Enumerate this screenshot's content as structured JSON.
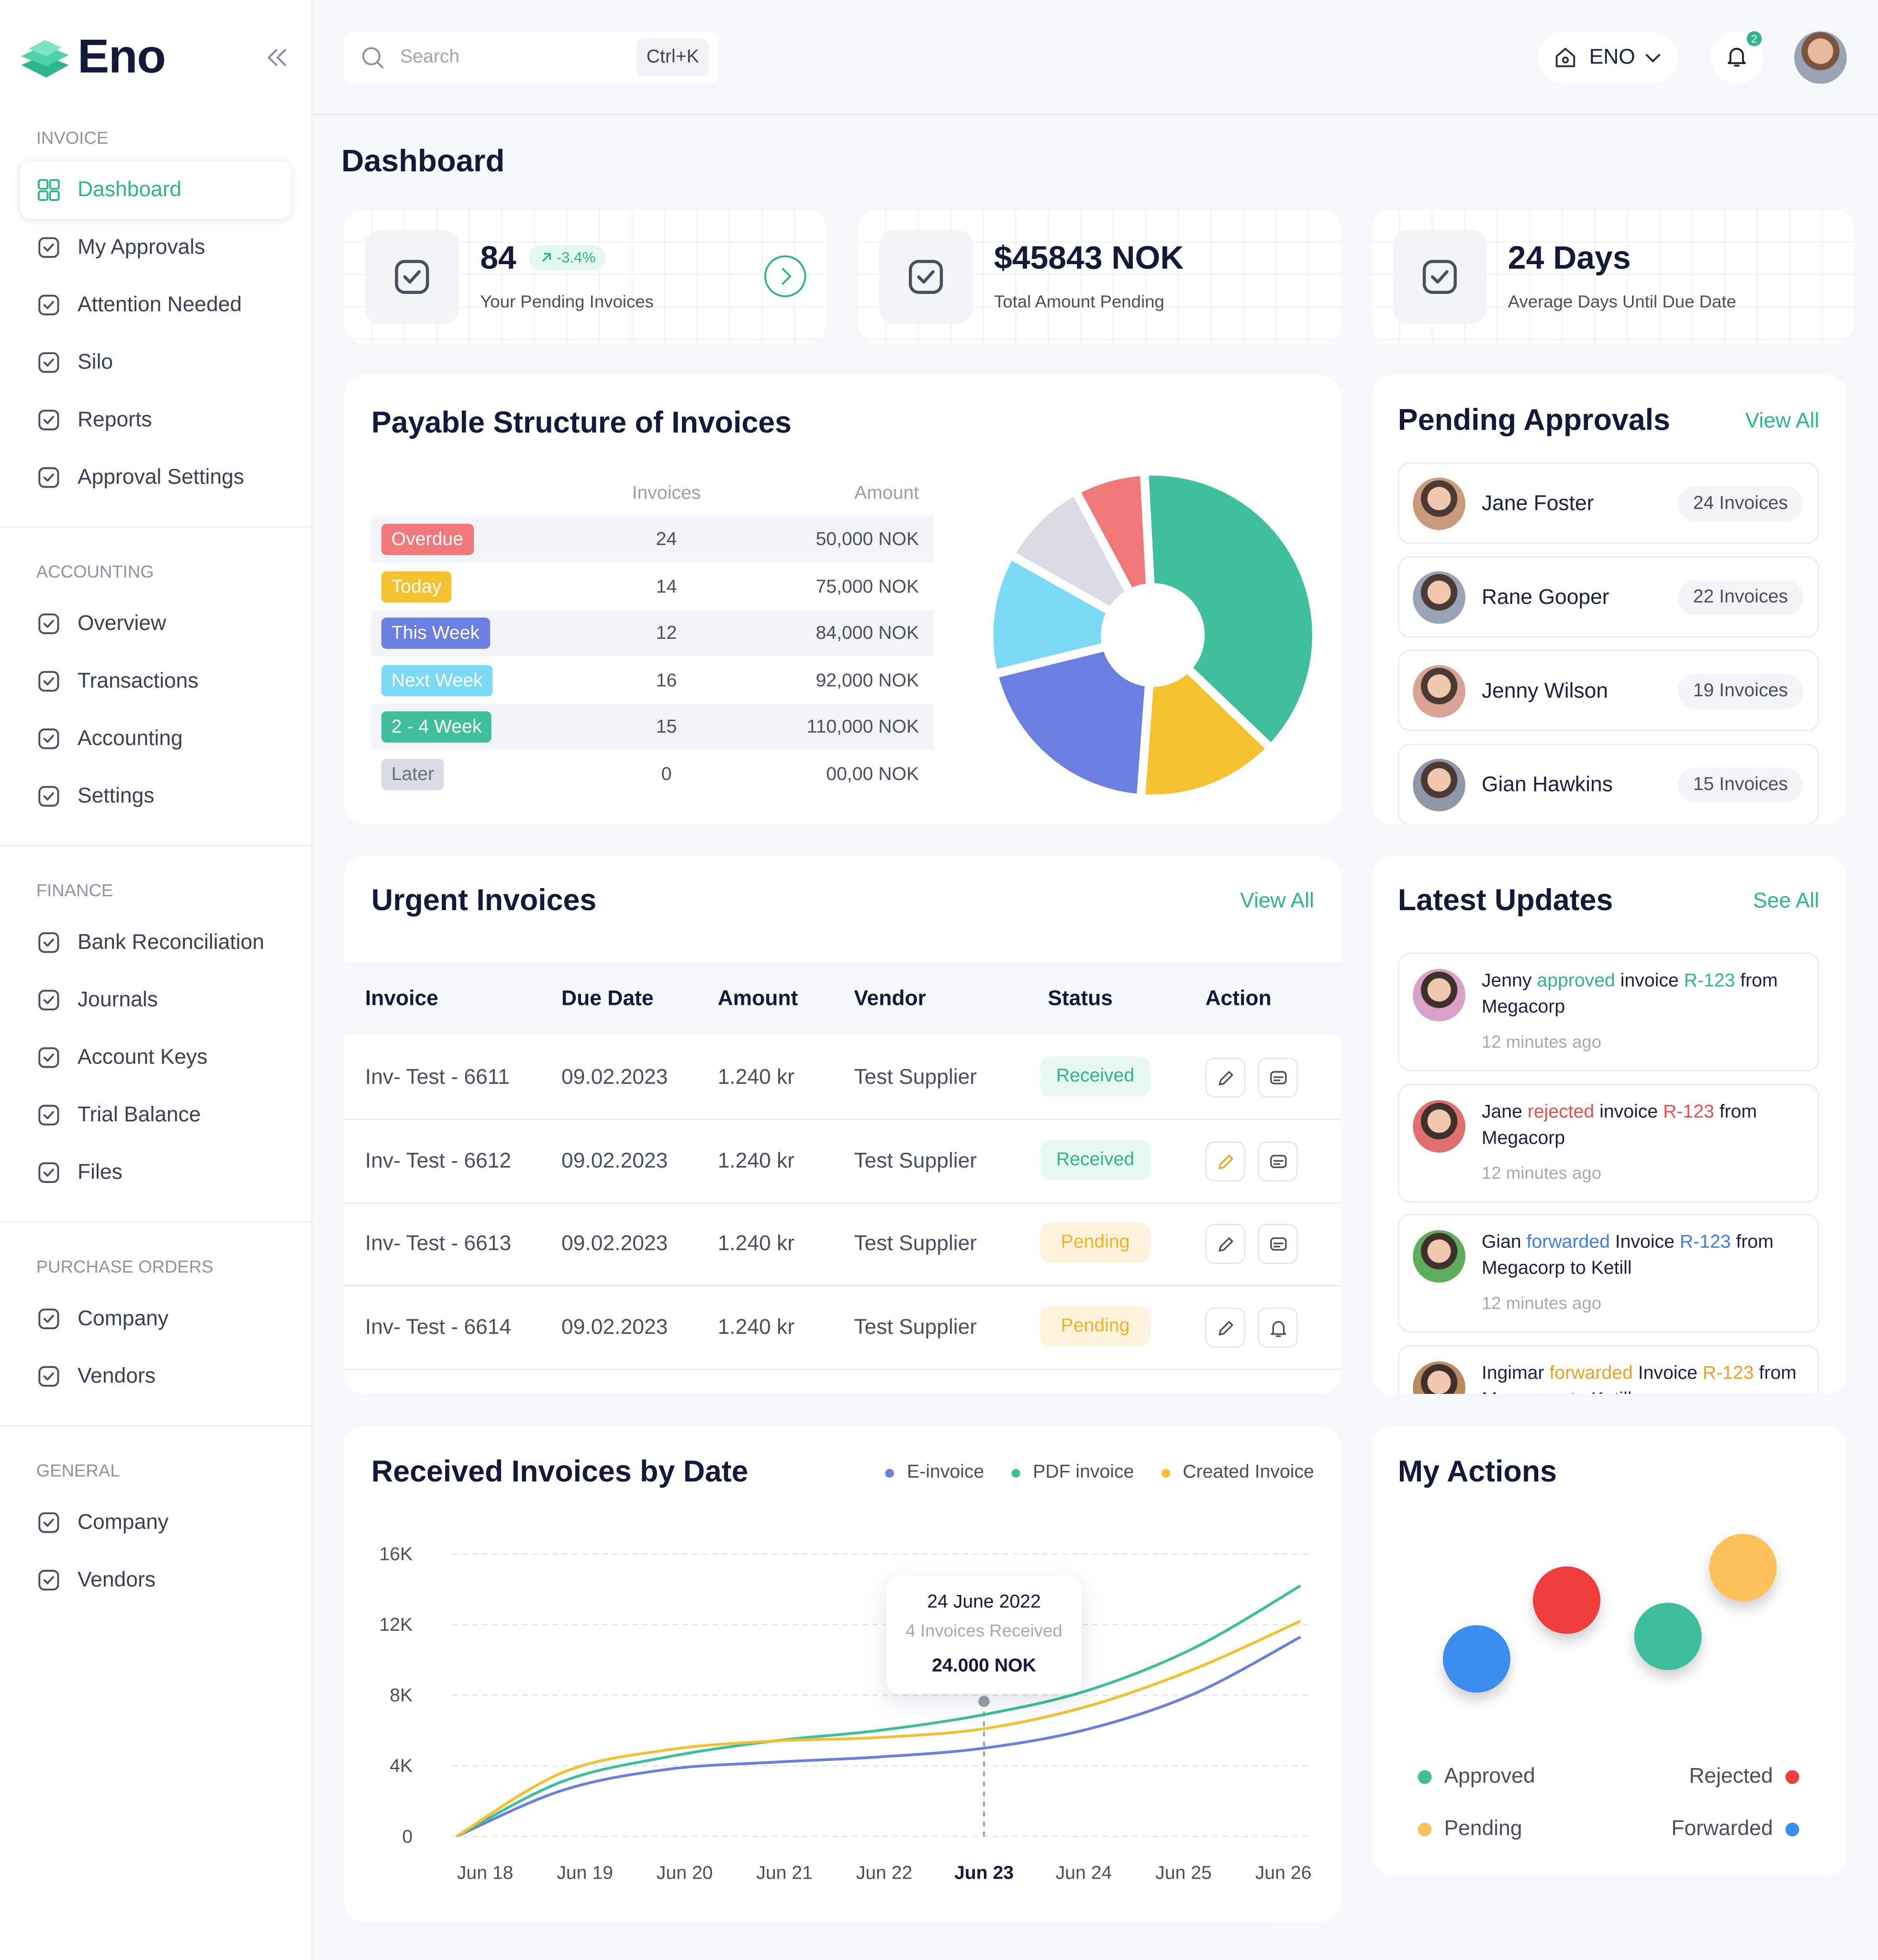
{
  "sidebar": {
    "brand": "Eno",
    "sections": [
      {
        "title": "INVOICE",
        "items": [
          {
            "label": "Dashboard",
            "active": true
          },
          {
            "label": "My Approvals"
          },
          {
            "label": "Attention Needed"
          },
          {
            "label": "Silo"
          },
          {
            "label": "Reports"
          },
          {
            "label": "Approval Settings"
          }
        ]
      },
      {
        "title": "ACCOUNTING",
        "items": [
          {
            "label": "Overview"
          },
          {
            "label": "Transactions"
          },
          {
            "label": "Accounting"
          },
          {
            "label": "Settings"
          }
        ]
      },
      {
        "title": "FINANCE",
        "items": [
          {
            "label": "Bank Reconciliation"
          },
          {
            "label": "Journals"
          },
          {
            "label": "Account Keys"
          },
          {
            "label": "Trial Balance"
          },
          {
            "label": "Files"
          }
        ]
      },
      {
        "title": "PURCHASE ORDERS",
        "items": [
          {
            "label": "Company"
          },
          {
            "label": "Vendors"
          }
        ]
      },
      {
        "title": "GENERAL",
        "items": [
          {
            "label": "Company"
          },
          {
            "label": "Vendors"
          }
        ]
      }
    ]
  },
  "header": {
    "search": "Search",
    "shortcut": "Ctrl+K",
    "workspace": "ENO",
    "notifications": 2
  },
  "page_title": "Dashboard",
  "stats": [
    {
      "value": 84,
      "change": "-3.4%",
      "label": "Your Pending Invoices"
    },
    {
      "value": "$45843 NOK",
      "label": "Total Amount Pending"
    },
    {
      "value": "24 Days",
      "label": "Average Days Until Due Date"
    }
  ],
  "payable": {
    "title": "Payable Structure of Invoices",
    "columns": [
      "Invoices",
      "Amount"
    ],
    "rows": [
      {
        "status": "Overdue",
        "color": "#f07878",
        "invoices": 24,
        "amount": "50,000 NOK"
      },
      {
        "status": "Today",
        "color": "#f5c22f",
        "invoices": 14,
        "amount": "75,000 NOK"
      },
      {
        "status": "This Week",
        "color": "#6a7fe0",
        "invoices": 12,
        "amount": "84,000 NOK"
      },
      {
        "status": "Next Week",
        "color": "#7ad9f5",
        "invoices": 16,
        "amount": "92,000 NOK"
      },
      {
        "status": "2 - 4 Week",
        "color": "#3fbf9b",
        "invoices": 15,
        "amount": "110,000 NOK"
      },
      {
        "status": "Later",
        "color": "#d9dce4",
        "invoices": 0,
        "amount": "00,00 NOK"
      }
    ]
  },
  "pending_approvals": {
    "title": "Pending Approvals",
    "link": "View All",
    "people": [
      {
        "name": "Jane Foster",
        "invoices": "24 Invoices"
      },
      {
        "name": "Rane Gooper",
        "invoices": "22 Invoices"
      },
      {
        "name": "Jenny Wilson",
        "invoices": "19 Invoices"
      },
      {
        "name": "Gian Hawkins",
        "invoices": "15 Invoices"
      }
    ]
  },
  "urgent_invoices": {
    "title": "Urgent Invoices",
    "link": "View All",
    "columns": [
      "Invoice",
      "Due Date",
      "Amount",
      "Vendor",
      "Status",
      "Action"
    ],
    "rows": [
      [
        "Inv- Test - 6611",
        "09.02.2023",
        "1.240 kr",
        "Test Supplier",
        "Received"
      ],
      [
        "Inv- Test - 6612",
        "09.02.2023",
        "1.240 kr",
        "Test Supplier",
        "Received"
      ],
      [
        "Inv- Test - 6613",
        "09.02.2023",
        "1.240 kr",
        "Test Supplier",
        "Pending"
      ],
      [
        "Inv- Test - 6614",
        "09.02.2023",
        "1.240 kr",
        "Test Supplier",
        "Pending"
      ]
    ]
  },
  "latest_updates": {
    "title": "Latest Updates",
    "link": "See All",
    "items": [
      {
        "parts": [
          {
            "text": "Jenny"
          },
          {
            "text": "approved",
            "color": "#2fb58a"
          },
          {
            "text": "invoice"
          },
          {
            "text": "R-123",
            "color": "#2fb58a"
          },
          {
            "text": "from Megacorp"
          }
        ],
        "time": "12 minutes ago"
      },
      {
        "parts": [
          {
            "text": "Jane"
          },
          {
            "text": "rejected",
            "color": "#ef4b4b"
          },
          {
            "text": "invoice"
          },
          {
            "text": "R-123",
            "color": "#ef4b4b"
          },
          {
            "text": "from Megacorp"
          }
        ],
        "time": "12 minutes ago"
      },
      {
        "parts": [
          {
            "text": "Gian"
          },
          {
            "text": "forwarded",
            "color": "#3f7ee8"
          },
          {
            "text": "Invoice"
          },
          {
            "text": "R-123",
            "color": "#3f7ee8"
          },
          {
            "text": "from Megacorp to Ketill"
          }
        ],
        "time": "12 minutes ago"
      },
      {
        "parts": [
          {
            "text": "Ingimar"
          },
          {
            "text": "forwarded",
            "color": "#f0a020"
          },
          {
            "text": "Invoice"
          },
          {
            "text": "R-123",
            "color": "#f0a020"
          },
          {
            "text": "from Megacorp to Ketill"
          }
        ]
      }
    ]
  },
  "my_actions": {
    "title": "My Actions",
    "legend": [
      {
        "name": "Approved",
        "color": "#3dbf9b"
      },
      {
        "name": "Rejected",
        "color": "#ef3e3e"
      },
      {
        "name": "Pending",
        "color": "#fbc25a"
      },
      {
        "name": "Forwarded",
        "color": "#3a8ef0"
      }
    ]
  },
  "chart_data": [
    {
      "type": "pie",
      "donut": true,
      "values": [
        38,
        14,
        20,
        12,
        9,
        7
      ],
      "colors": [
        "#3fbf9b",
        "#f5c22f",
        "#6a7fe0",
        "#7ad9f5",
        "#d9dce4",
        "#f07878"
      ]
    },
    {
      "type": "line",
      "title": "Received Invoices by Date",
      "categories": [
        "Jun 18",
        "Jun 19",
        "Jun 20",
        "Jun 21",
        "Jun 22",
        "Jun 23",
        "Jun 24",
        "Jun 25",
        "Jun 26"
      ],
      "series": [
        {
          "name": "E-invoice",
          "color": "#6a7fe0",
          "values": [
            0,
            2600,
            3800,
            4200,
            4500,
            5000,
            6100,
            8100,
            11300
          ]
        },
        {
          "name": "PDF invoice",
          "color": "#3dbf9b",
          "values": [
            0,
            3100,
            4500,
            5400,
            6000,
            6900,
            8300,
            10700,
            14200
          ]
        },
        {
          "name": "Created Invoice",
          "color": "#f3c130",
          "values": [
            0,
            3600,
            4900,
            5400,
            5600,
            6100,
            7400,
            9500,
            12200
          ]
        }
      ],
      "ylim": [
        0,
        16000
      ],
      "yticks": [
        0,
        {
          "value": 4000,
          "label": "4K"
        },
        {
          "value": 8000,
          "label": "8K"
        },
        {
          "value": 12000,
          "label": "12K"
        },
        {
          "value": 16000,
          "label": "16K"
        }
      ],
      "grid": true,
      "legend": "top-right",
      "tooltip": {
        "x": "Jun 23",
        "title": "24 June 2022",
        "note": "4 Invoices Received",
        "amount": "24.000 NOK"
      }
    }
  ]
}
